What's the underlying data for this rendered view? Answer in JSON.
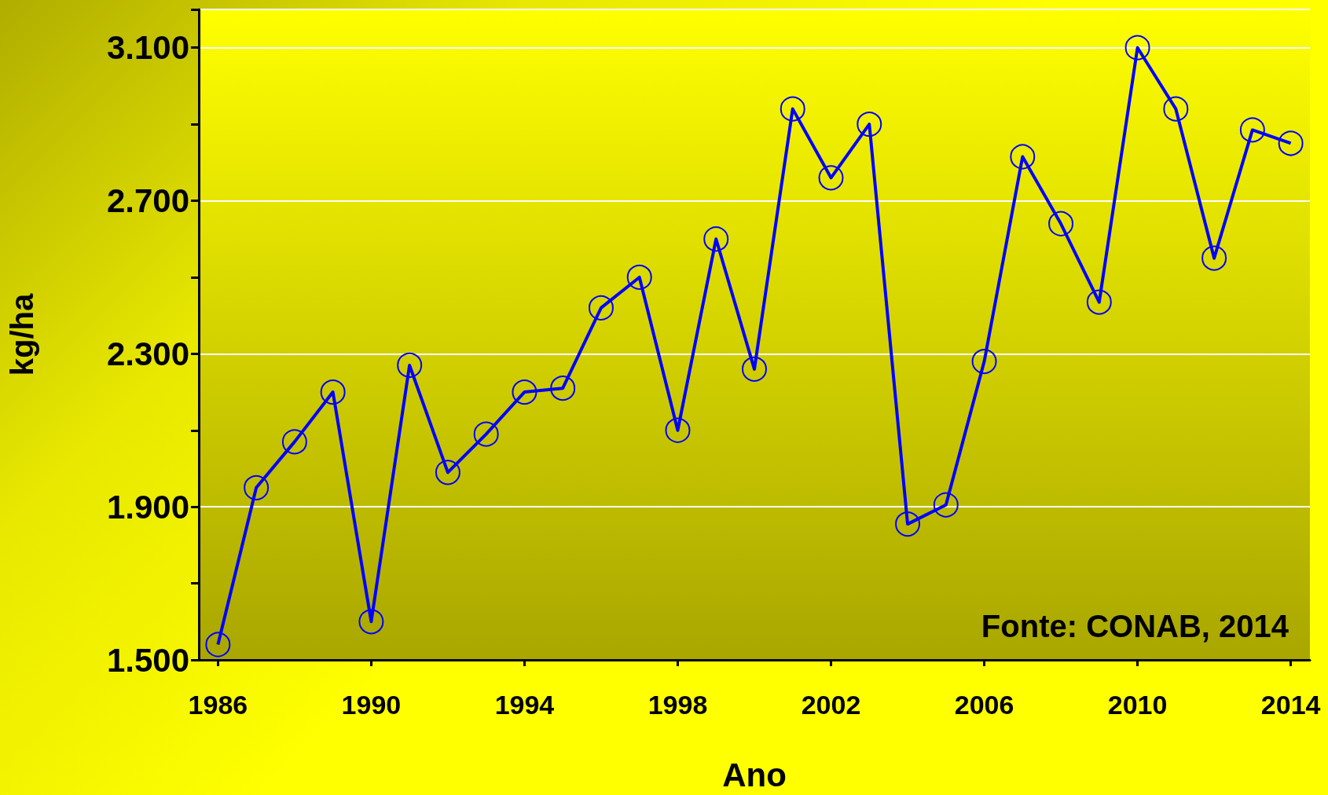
{
  "chart_data": {
    "type": "line",
    "xlabel": "Ano",
    "ylabel": "kg/ha",
    "x": [
      1986,
      1987,
      1988,
      1989,
      1990,
      1991,
      1992,
      1993,
      1994,
      1995,
      1996,
      1997,
      1998,
      1999,
      2000,
      2001,
      2002,
      2003,
      2004,
      2005,
      2006,
      2007,
      2008,
      2009,
      2010,
      2011,
      2012,
      2013,
      2014
    ],
    "series": [
      {
        "color": "#0000ff",
        "values": [
          1540,
          1950,
          2070,
          2200,
          1600,
          2270,
          1990,
          2090,
          2200,
          2210,
          2420,
          2500,
          2100,
          2600,
          2260,
          2940,
          2760,
          2900,
          1855,
          1905,
          2280,
          2815,
          2640,
          2435,
          3100,
          2940,
          2550,
          2885,
          2850
        ]
      }
    ],
    "xlim": [
      1985.5,
      2014.5
    ],
    "xticks": [
      1986,
      1990,
      1994,
      1998,
      2002,
      2006,
      2010,
      2014
    ],
    "ylim": [
      1500,
      3200
    ],
    "yticks": [
      {
        "value": 1500,
        "label": "1.500"
      },
      {
        "value": 1700,
        "label": null
      },
      {
        "value": 1900,
        "label": "1.900"
      },
      {
        "value": 2100,
        "label": null
      },
      {
        "value": 2300,
        "label": "2.300"
      },
      {
        "value": 2500,
        "label": null
      },
      {
        "value": 2700,
        "label": "2.700"
      },
      {
        "value": 2900,
        "label": null
      },
      {
        "value": 3100,
        "label": "3.100"
      }
    ],
    "grid": "y",
    "marker": "circle",
    "line_style": "solid",
    "annotations": [
      "Fonte: CONAB, 2014"
    ]
  }
}
